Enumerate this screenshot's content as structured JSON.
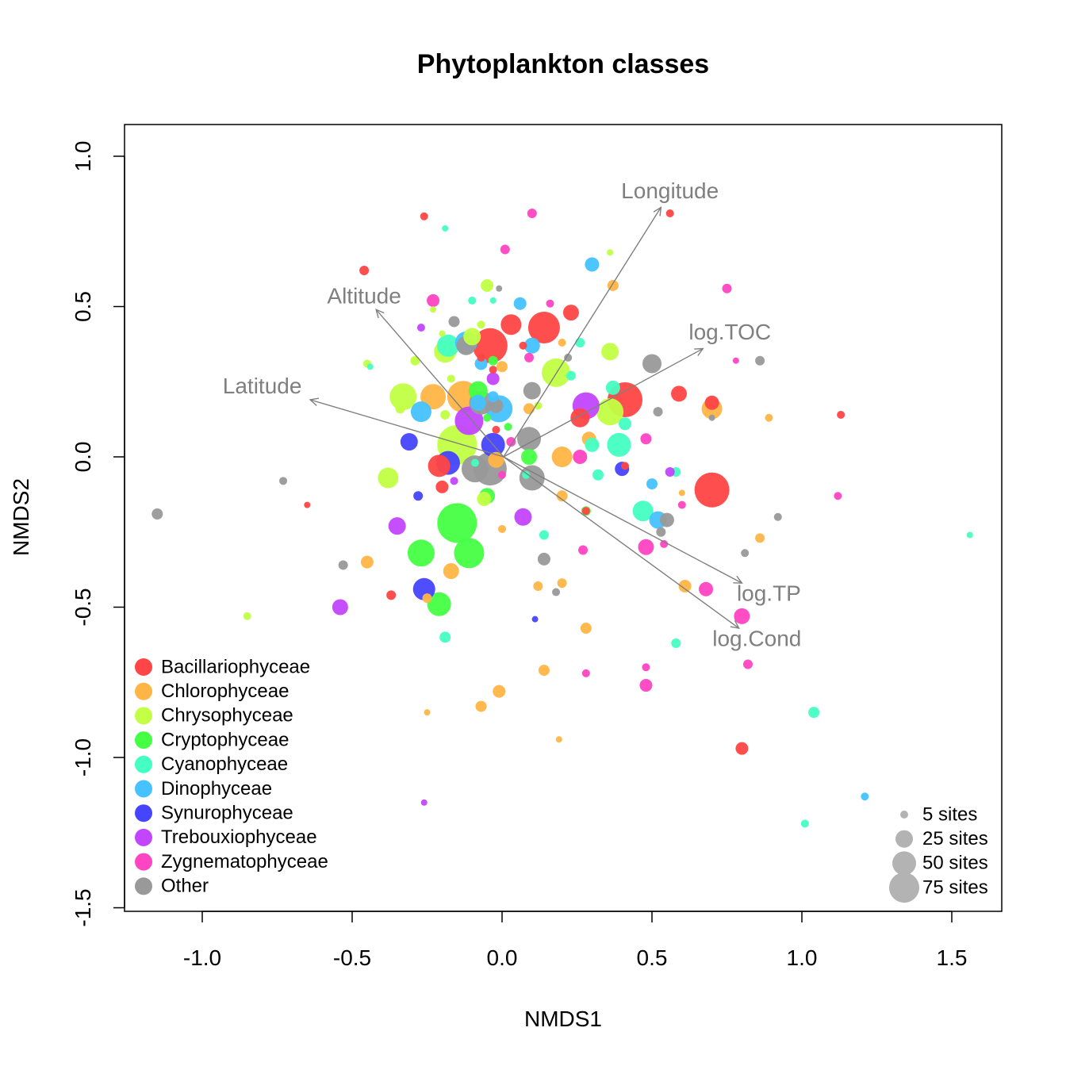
{
  "chart_data": {
    "type": "scatter",
    "title": "Phytoplankton classes",
    "xlabel": "NMDS1",
    "ylabel": "NMDS2",
    "xlim": [
      -1.26,
      1.65
    ],
    "ylim": [
      -1.5,
      1.1
    ],
    "x_ticks": [
      -1.0,
      -0.5,
      0.0,
      0.5,
      1.0,
      1.5
    ],
    "x_tick_labels": [
      "-1.0",
      "-0.5",
      "0.0",
      "0.5",
      "1.0",
      "1.5"
    ],
    "y_ticks": [
      -1.5,
      -1.0,
      -0.5,
      0.0,
      0.5,
      1.0
    ],
    "y_tick_labels": [
      "-1.5",
      "-1.0",
      "-0.5",
      "0.0",
      "0.5",
      "1.0"
    ],
    "grid": false,
    "vector_color": "#7f7f7f",
    "vectors": [
      {
        "label": "Longitude",
        "x": 0.53,
        "y": 0.83,
        "label_x": 0.56,
        "label_y": 0.88
      },
      {
        "label": "Altitude",
        "x": -0.42,
        "y": 0.49,
        "label_x": -0.46,
        "label_y": 0.53
      },
      {
        "label": "log.TOC",
        "x": 0.67,
        "y": 0.36,
        "label_x": 0.76,
        "label_y": 0.41
      },
      {
        "label": "Latitude",
        "x": -0.64,
        "y": 0.19,
        "label_x": -0.8,
        "label_y": 0.23
      },
      {
        "label": "log.TP",
        "x": 0.8,
        "y": -0.42,
        "label_x": 0.89,
        "label_y": -0.46
      },
      {
        "label": "log.Cond",
        "x": 0.79,
        "y": -0.57,
        "label_x": 0.85,
        "label_y": -0.61
      }
    ],
    "series": [
      {
        "name": "Bacillariophyceae",
        "color": "#FF4545",
        "points": [
          [
            -0.26,
            0.8,
            5
          ],
          [
            0.56,
            0.81,
            5
          ],
          [
            -0.46,
            0.62,
            6
          ],
          [
            0.23,
            0.48,
            10
          ],
          [
            0.03,
            0.44,
            13
          ],
          [
            0.14,
            0.43,
            20
          ],
          [
            -0.04,
            0.37,
            22
          ],
          [
            0.07,
            0.37,
            5
          ],
          [
            -0.03,
            0.29,
            5
          ],
          [
            0.41,
            0.19,
            22
          ],
          [
            0.59,
            0.21,
            10
          ],
          [
            0.7,
            0.18,
            9
          ],
          [
            1.13,
            0.14,
            5
          ],
          [
            -0.02,
            0.09,
            5
          ],
          [
            -0.21,
            -0.03,
            14
          ],
          [
            0.41,
            -0.03,
            5
          ],
          [
            -0.2,
            -0.1,
            8
          ],
          [
            0.7,
            -0.11,
            22
          ],
          [
            -0.65,
            -0.16,
            4
          ],
          [
            0.28,
            -0.18,
            5
          ],
          [
            -0.37,
            -0.46,
            6
          ],
          [
            0.8,
            -0.97,
            8
          ],
          [
            0.26,
            0.13,
            12
          ],
          [
            -0.07,
            0.33,
            5
          ]
        ]
      },
      {
        "name": "Chlorophyceae",
        "color": "#FFB545",
        "points": [
          [
            0.37,
            0.57,
            7
          ],
          [
            -0.23,
            0.2,
            16
          ],
          [
            -0.13,
            0.2,
            20
          ],
          [
            0.0,
            0.3,
            7
          ],
          [
            0.2,
            0.38,
            5
          ],
          [
            0.09,
            0.16,
            7
          ],
          [
            0.7,
            0.16,
            13
          ],
          [
            0.89,
            0.13,
            5
          ],
          [
            0.29,
            0.06,
            9
          ],
          [
            0.2,
            0.0,
            13
          ],
          [
            -0.02,
            -0.01,
            10
          ],
          [
            0.2,
            -0.13,
            7
          ],
          [
            0.0,
            -0.24,
            5
          ],
          [
            0.6,
            -0.12,
            4
          ],
          [
            0.86,
            -0.27,
            6
          ],
          [
            -0.45,
            -0.35,
            8
          ],
          [
            -0.17,
            -0.38,
            10
          ],
          [
            0.12,
            -0.43,
            6
          ],
          [
            0.2,
            -0.42,
            6
          ],
          [
            0.61,
            -0.43,
            8
          ],
          [
            -0.25,
            -0.47,
            6
          ],
          [
            0.28,
            -0.57,
            7
          ],
          [
            0.14,
            -0.71,
            7
          ],
          [
            -0.01,
            -0.78,
            8
          ],
          [
            -0.07,
            -0.83,
            7
          ],
          [
            -0.25,
            -0.85,
            4
          ],
          [
            0.19,
            -0.94,
            4
          ]
        ]
      },
      {
        "name": "Chrysophyceae",
        "color": "#C2FF45",
        "points": [
          [
            -0.05,
            0.57,
            8
          ],
          [
            0.36,
            0.68,
            4
          ],
          [
            -0.45,
            0.31,
            5
          ],
          [
            -0.19,
            0.35,
            14
          ],
          [
            -0.29,
            0.32,
            6
          ],
          [
            -0.1,
            0.4,
            11
          ],
          [
            -0.07,
            0.44,
            5
          ],
          [
            0.18,
            0.28,
            18
          ],
          [
            0.36,
            0.35,
            11
          ],
          [
            -0.33,
            0.2,
            17
          ],
          [
            -0.34,
            0.16,
            6
          ],
          [
            -0.19,
            0.14,
            6
          ],
          [
            -0.17,
            0.26,
            5
          ],
          [
            0.36,
            0.15,
            17
          ],
          [
            -0.15,
            0.04,
            25
          ],
          [
            -0.38,
            -0.07,
            13
          ],
          [
            -0.06,
            -0.14,
            9
          ],
          [
            -0.85,
            -0.53,
            5
          ],
          [
            0.12,
            0.17,
            5
          ],
          [
            -0.2,
            0.41,
            4
          ],
          [
            -0.23,
            0.49,
            4
          ]
        ]
      },
      {
        "name": "Cryptophyceae",
        "color": "#45FF45",
        "points": [
          [
            -0.08,
            0.22,
            12
          ],
          [
            -0.03,
            0.32,
            6
          ],
          [
            -0.05,
            0.13,
            5
          ],
          [
            0.09,
            0.0,
            10
          ],
          [
            -0.05,
            -0.13,
            10
          ],
          [
            -0.15,
            -0.22,
            25
          ],
          [
            -0.27,
            -0.32,
            17
          ],
          [
            -0.11,
            -0.32,
            19
          ],
          [
            -0.21,
            -0.49,
            15
          ],
          [
            0.28,
            -0.18,
            6
          ],
          [
            0.02,
            0.1,
            5
          ]
        ]
      },
      {
        "name": "Cyanophyceae",
        "color": "#45FFC2",
        "points": [
          [
            -0.19,
            0.76,
            4
          ],
          [
            -0.1,
            0.52,
            5
          ],
          [
            -0.03,
            0.52,
            4
          ],
          [
            -0.18,
            0.37,
            14
          ],
          [
            0.26,
            0.38,
            6
          ],
          [
            -0.44,
            0.3,
            4
          ],
          [
            0.23,
            0.27,
            6
          ],
          [
            0.37,
            0.23,
            9
          ],
          [
            0.41,
            0.11,
            8
          ],
          [
            0.39,
            0.04,
            15
          ],
          [
            0.3,
            0.04,
            9
          ],
          [
            0.08,
            -0.06,
            5
          ],
          [
            0.32,
            -0.06,
            7
          ],
          [
            0.47,
            -0.18,
            13
          ],
          [
            0.58,
            -0.05,
            6
          ],
          [
            0.14,
            -0.26,
            6
          ],
          [
            -0.19,
            -0.6,
            7
          ],
          [
            0.58,
            -0.62,
            6
          ],
          [
            1.04,
            -0.85,
            7
          ],
          [
            1.01,
            -1.22,
            5
          ],
          [
            1.56,
            -0.26,
            4
          ],
          [
            -0.09,
            -0.02,
            5
          ]
        ]
      },
      {
        "name": "Dinophyceae",
        "color": "#45C2FF",
        "points": [
          [
            0.3,
            0.64,
            9
          ],
          [
            0.06,
            0.51,
            8
          ],
          [
            0.1,
            0.37,
            10
          ],
          [
            -0.07,
            0.31,
            8
          ],
          [
            -0.12,
            0.38,
            14
          ],
          [
            -0.27,
            0.15,
            13
          ],
          [
            -0.08,
            0.18,
            10
          ],
          [
            -0.01,
            0.16,
            17
          ],
          [
            -0.03,
            0.2,
            7
          ],
          [
            0.5,
            -0.09,
            7
          ],
          [
            0.52,
            -0.21,
            11
          ],
          [
            1.21,
            -1.13,
            5
          ]
        ]
      },
      {
        "name": "Synurophyceae",
        "color": "#4545FF",
        "points": [
          [
            -0.31,
            0.05,
            11
          ],
          [
            -0.18,
            -0.02,
            15
          ],
          [
            -0.03,
            0.04,
            15
          ],
          [
            0.4,
            -0.04,
            9
          ],
          [
            -0.28,
            -0.13,
            6
          ],
          [
            -0.26,
            -0.44,
            14
          ],
          [
            0.11,
            -0.54,
            4
          ]
        ]
      },
      {
        "name": "Trebouxiophyceae",
        "color": "#C245FF",
        "points": [
          [
            -0.27,
            0.43,
            5
          ],
          [
            -0.11,
            0.12,
            18
          ],
          [
            -0.03,
            0.26,
            8
          ],
          [
            0.28,
            0.17,
            17
          ],
          [
            0.56,
            -0.05,
            6
          ],
          [
            -0.35,
            -0.23,
            11
          ],
          [
            0.07,
            -0.2,
            11
          ],
          [
            -0.16,
            -0.08,
            5
          ],
          [
            -0.54,
            -0.5,
            10
          ],
          [
            -0.26,
            -1.15,
            4
          ]
        ]
      },
      {
        "name": "Zygnematophyceae",
        "color": "#FF45C2",
        "points": [
          [
            0.1,
            0.81,
            6
          ],
          [
            0.01,
            0.69,
            6
          ],
          [
            0.16,
            0.51,
            5
          ],
          [
            0.75,
            0.56,
            6
          ],
          [
            -0.23,
            0.52,
            8
          ],
          [
            0.09,
            0.33,
            6
          ],
          [
            0.78,
            0.32,
            4
          ],
          [
            0.26,
            0.0,
            9
          ],
          [
            0.48,
            0.06,
            7
          ],
          [
            0.6,
            -0.16,
            5
          ],
          [
            0.48,
            -0.3,
            10
          ],
          [
            0.54,
            -0.29,
            5
          ],
          [
            0.68,
            -0.44,
            9
          ],
          [
            0.8,
            -0.53,
            10
          ],
          [
            0.82,
            -0.69,
            6
          ],
          [
            0.48,
            -0.7,
            5
          ],
          [
            0.27,
            -0.31,
            6
          ],
          [
            0.28,
            -0.72,
            5
          ],
          [
            0.48,
            -0.76,
            8
          ],
          [
            1.12,
            -0.13,
            5
          ],
          [
            0.0,
            -0.06,
            5
          ],
          [
            0.03,
            0.05,
            6
          ]
        ]
      },
      {
        "name": "Other",
        "color": "#999999",
        "points": [
          [
            -0.16,
            0.45,
            7
          ],
          [
            -0.01,
            0.56,
            4
          ],
          [
            0.22,
            0.33,
            5
          ],
          [
            0.5,
            0.31,
            12
          ],
          [
            0.86,
            0.32,
            6
          ],
          [
            0.52,
            0.15,
            6
          ],
          [
            0.7,
            0.13,
            4
          ],
          [
            -0.12,
            0.37,
            12
          ],
          [
            0.1,
            0.22,
            11
          ],
          [
            -0.07,
            0.18,
            15
          ],
          [
            0.09,
            0.06,
            15
          ],
          [
            -0.04,
            -0.04,
            21
          ],
          [
            -0.09,
            -0.04,
            17
          ],
          [
            0.1,
            -0.07,
            16
          ],
          [
            0.55,
            -0.21,
            9
          ],
          [
            0.53,
            -0.25,
            6
          ],
          [
            0.92,
            -0.2,
            5
          ],
          [
            0.14,
            -0.34,
            8
          ],
          [
            0.81,
            -0.32,
            5
          ],
          [
            0.18,
            -0.45,
            5
          ],
          [
            -0.53,
            -0.36,
            6
          ],
          [
            -0.73,
            -0.08,
            5
          ],
          [
            -1.15,
            -0.19,
            7
          ],
          [
            -0.02,
            0.17,
            9
          ]
        ]
      }
    ],
    "size_legend": {
      "position": "bottom-right",
      "color": "#b3b3b3",
      "items": [
        {
          "label": "5 sites",
          "r": 5
        },
        {
          "label": "25 sites",
          "r": 11
        },
        {
          "label": "50 sites",
          "r": 15
        },
        {
          "label": "75 sites",
          "r": 19
        }
      ]
    },
    "color_legend_position": "bottom-left"
  }
}
